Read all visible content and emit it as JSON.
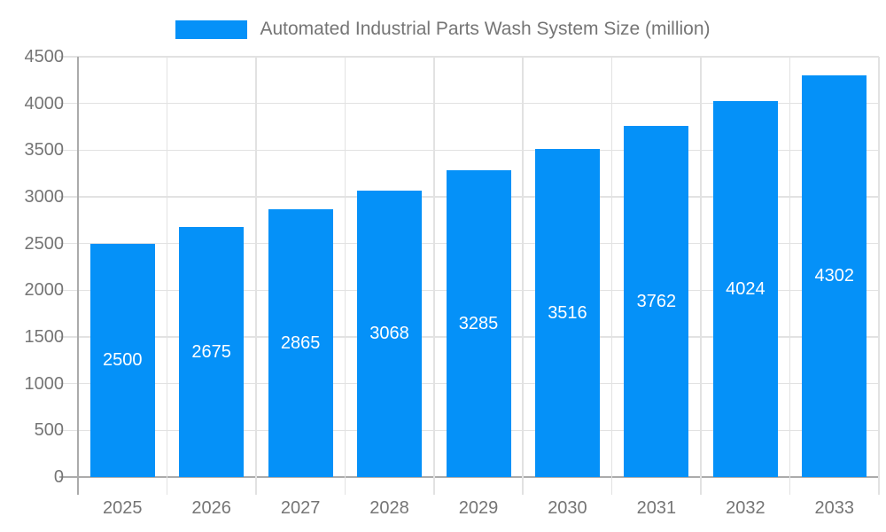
{
  "legend": {
    "label": "Automated Industrial Parts Wash System Size (million)"
  },
  "chart_data": {
    "type": "bar",
    "title": "Automated Industrial Parts Wash System Size (million)",
    "series_name": "Automated Industrial Parts Wash System Size (million)",
    "categories": [
      "2025",
      "2026",
      "2027",
      "2028",
      "2029",
      "2030",
      "2031",
      "2032",
      "2033"
    ],
    "values": [
      2500,
      2675,
      2865,
      3068,
      3285,
      3516,
      3762,
      4024,
      4302
    ],
    "value_labels": [
      "2500",
      "2675",
      "2865",
      "3068",
      "3285",
      "3516",
      "3762",
      "4024",
      "4302"
    ],
    "xlabel": "",
    "ylabel": "",
    "ylim": [
      0,
      4500
    ],
    "ytick_step": 500,
    "yticks": [
      0,
      500,
      1000,
      1500,
      2000,
      2500,
      3000,
      3500,
      4000,
      4500
    ],
    "ytick_labels": [
      "0",
      "500",
      "1000",
      "1500",
      "2000",
      "2500",
      "3000",
      "3500",
      "4000",
      "4500"
    ],
    "grid": true,
    "legend_position": "top",
    "colors": {
      "bar": "#0591f8",
      "grid": "#e2e2e2",
      "axis": "#ababab",
      "tick_text": "#757575",
      "value_label_text": "#ffffff",
      "background": "#ffffff"
    }
  }
}
